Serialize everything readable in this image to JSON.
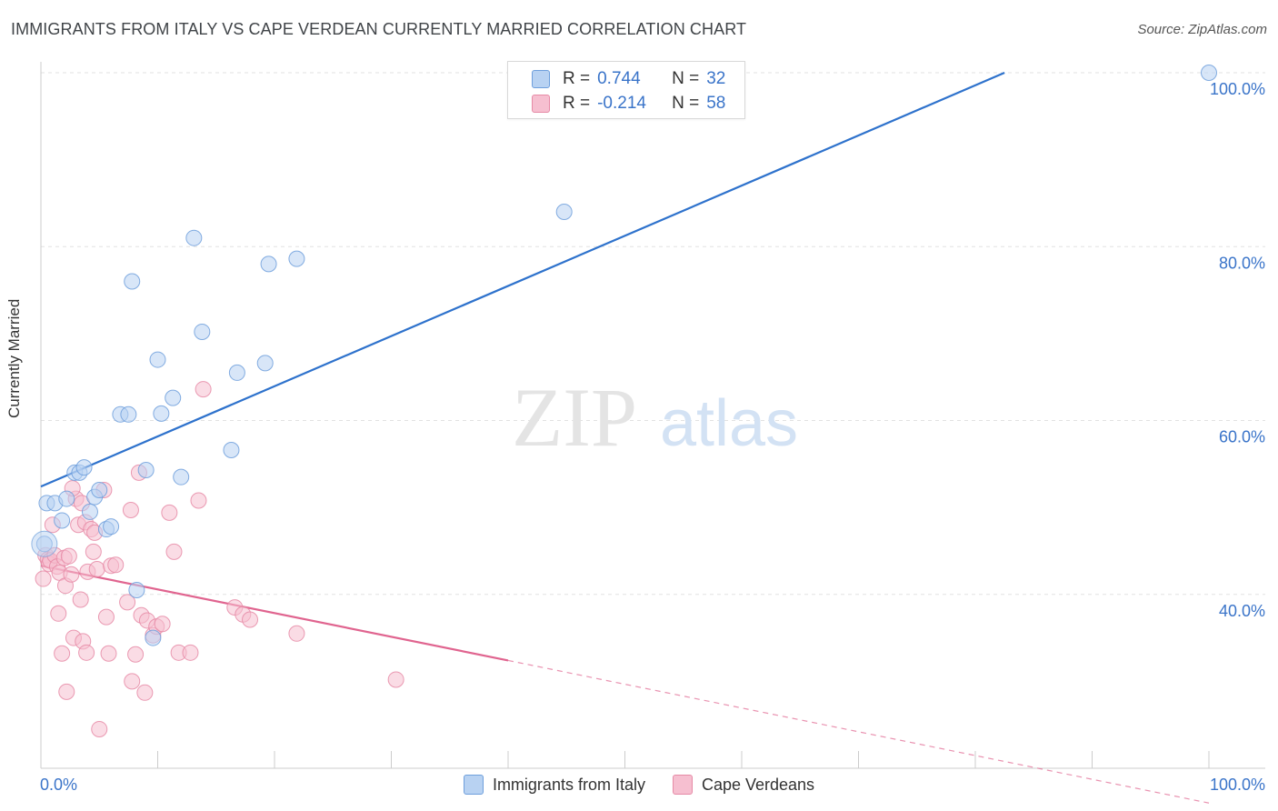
{
  "title": "IMMIGRANTS FROM ITALY VS CAPE VERDEAN CURRENTLY MARRIED CORRELATION CHART",
  "source": "Source: ZipAtlas.com",
  "watermark": {
    "zip": "ZIP",
    "atlas": "atlas"
  },
  "colors": {
    "italy_fill": "#b8d2f2",
    "italy_stroke": "#6e9fdc",
    "italy_line": "#2e72cc",
    "cv_fill": "#f6bfd0",
    "cv_stroke": "#e68aa6",
    "cv_line": "#e0648f",
    "axis_label": "#3a74c9",
    "grid": "#e2e2e2"
  },
  "stats": [
    {
      "r_label": "R =",
      "r": "0.744",
      "n_label": "N =",
      "n": "32"
    },
    {
      "r_label": "R =",
      "r": "-0.214",
      "n_label": "N =",
      "n": "58"
    }
  ],
  "legend": [
    "Immigrants from Italy",
    "Cape Verdeans"
  ],
  "chart_data": {
    "type": "scatter",
    "xlabel": "",
    "ylabel": "Currently Married",
    "xlim": [
      0,
      100
    ],
    "ylim": [
      20,
      100
    ],
    "x_tick_labels": [
      "0.0%",
      "100.0%"
    ],
    "y_ticks": [
      40,
      60,
      80,
      100
    ],
    "y_tick_labels": [
      "40.0%",
      "60.0%",
      "80.0%",
      "100.0%"
    ],
    "grid": true,
    "legend_position": "bottom",
    "series": [
      {
        "name": "Immigrants from Italy",
        "points": [
          [
            0.3,
            45.8
          ],
          [
            0.5,
            50.5
          ],
          [
            1.2,
            50.5
          ],
          [
            1.8,
            48.5
          ],
          [
            2.2,
            51.0
          ],
          [
            2.9,
            54.0
          ],
          [
            3.3,
            54.0
          ],
          [
            3.7,
            54.6
          ],
          [
            4.2,
            49.5
          ],
          [
            4.6,
            51.2
          ],
          [
            5.0,
            52.0
          ],
          [
            5.6,
            47.5
          ],
          [
            6.0,
            47.8
          ],
          [
            7.8,
            76.0
          ],
          [
            8.2,
            40.5
          ],
          [
            6.8,
            60.7
          ],
          [
            7.5,
            60.7
          ],
          [
            9.0,
            54.3
          ],
          [
            9.6,
            35.0
          ],
          [
            10.0,
            67.0
          ],
          [
            10.3,
            60.8
          ],
          [
            11.3,
            62.6
          ],
          [
            12.0,
            53.5
          ],
          [
            13.1,
            81.0
          ],
          [
            13.8,
            70.2
          ],
          [
            16.3,
            56.6
          ],
          [
            16.8,
            65.5
          ],
          [
            19.2,
            66.6
          ],
          [
            19.5,
            78.0
          ],
          [
            21.9,
            78.6
          ],
          [
            44.8,
            84.0
          ],
          [
            100.0,
            100.0
          ]
        ],
        "trend": {
          "x0": 0,
          "y0": 52.4,
          "x1": 82.5,
          "y1": 100
        }
      },
      {
        "name": "Cape Verdeans",
        "points": [
          [
            0.2,
            41.8
          ],
          [
            0.4,
            44.5
          ],
          [
            0.6,
            44.0
          ],
          [
            0.7,
            43.5
          ],
          [
            0.8,
            43.9
          ],
          [
            1.0,
            48.0
          ],
          [
            1.2,
            44.5
          ],
          [
            1.4,
            43.2
          ],
          [
            1.5,
            37.8
          ],
          [
            1.6,
            42.5
          ],
          [
            1.8,
            33.2
          ],
          [
            2.0,
            44.2
          ],
          [
            2.1,
            41.0
          ],
          [
            2.2,
            28.8
          ],
          [
            2.4,
            44.4
          ],
          [
            2.6,
            42.3
          ],
          [
            2.8,
            35.0
          ],
          [
            3.0,
            51.0
          ],
          [
            3.2,
            48.0
          ],
          [
            3.4,
            39.4
          ],
          [
            3.6,
            34.6
          ],
          [
            3.8,
            48.3
          ],
          [
            3.9,
            33.3
          ],
          [
            4.0,
            42.6
          ],
          [
            4.3,
            47.5
          ],
          [
            4.5,
            44.9
          ],
          [
            4.6,
            47.1
          ],
          [
            4.8,
            42.9
          ],
          [
            5.0,
            24.5
          ],
          [
            5.4,
            52.0
          ],
          [
            5.6,
            37.4
          ],
          [
            5.8,
            33.2
          ],
          [
            6.0,
            43.3
          ],
          [
            6.4,
            43.4
          ],
          [
            7.4,
            39.1
          ],
          [
            7.7,
            49.7
          ],
          [
            7.8,
            30.0
          ],
          [
            8.1,
            33.1
          ],
          [
            8.4,
            54.0
          ],
          [
            8.6,
            37.6
          ],
          [
            8.9,
            28.7
          ],
          [
            9.1,
            37.0
          ],
          [
            9.6,
            35.3
          ],
          [
            9.9,
            36.3
          ],
          [
            10.4,
            36.6
          ],
          [
            11.0,
            49.4
          ],
          [
            11.4,
            44.9
          ],
          [
            11.8,
            33.3
          ],
          [
            12.8,
            33.3
          ],
          [
            13.5,
            50.8
          ],
          [
            13.9,
            63.6
          ],
          [
            16.6,
            38.5
          ],
          [
            17.3,
            37.7
          ],
          [
            17.9,
            37.1
          ],
          [
            21.9,
            35.5
          ],
          [
            30.4,
            30.2
          ],
          [
            3.5,
            50.5
          ],
          [
            2.7,
            52.2
          ]
        ],
        "trend": {
          "x0": 0,
          "y0": 43.3,
          "x1": 40,
          "y1": 32.4
        },
        "trend_dashed": {
          "x0": 40,
          "y0": 32.4,
          "x1": 100,
          "y1": 16.0
        }
      }
    ]
  }
}
